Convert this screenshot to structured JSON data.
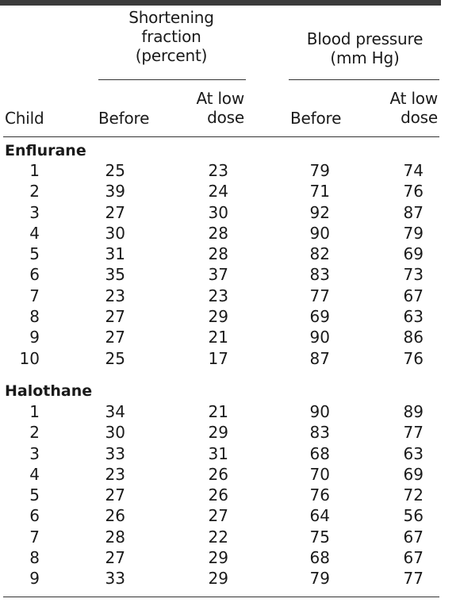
{
  "table": {
    "headers": {
      "group_shortening_line1": "Shortening",
      "group_shortening_line2": "fraction",
      "group_shortening_line3": "(percent)",
      "group_bp_line1": "Blood pressure",
      "group_bp_line2": "(mm Hg)",
      "child": "Child",
      "before_sf": "Before",
      "low_sf_line1": "At low",
      "low_sf_line2": "dose",
      "before_bp": "Before",
      "low_bp_line1": "At low",
      "low_bp_line2": "dose"
    },
    "sections": [
      {
        "name": "Enflurane",
        "rows": [
          [
            "1",
            "25",
            "23",
            "79",
            "74"
          ],
          [
            "2",
            "39",
            "24",
            "71",
            "76"
          ],
          [
            "3",
            "27",
            "30",
            "92",
            "87"
          ],
          [
            "4",
            "30",
            "28",
            "90",
            "79"
          ],
          [
            "5",
            "31",
            "28",
            "82",
            "69"
          ],
          [
            "6",
            "35",
            "37",
            "83",
            "73"
          ],
          [
            "7",
            "23",
            "23",
            "77",
            "67"
          ],
          [
            "8",
            "27",
            "29",
            "69",
            "63"
          ],
          [
            "9",
            "27",
            "21",
            "90",
            "86"
          ],
          [
            "10",
            "25",
            "17",
            "87",
            "76"
          ]
        ]
      },
      {
        "name": "Halothane",
        "rows": [
          [
            "1",
            "34",
            "21",
            "90",
            "89"
          ],
          [
            "2",
            "30",
            "29",
            "83",
            "77"
          ],
          [
            "3",
            "33",
            "31",
            "68",
            "63"
          ],
          [
            "4",
            "23",
            "26",
            "70",
            "69"
          ],
          [
            "5",
            "27",
            "26",
            "76",
            "72"
          ],
          [
            "6",
            "26",
            "27",
            "64",
            "56"
          ],
          [
            "7",
            "28",
            "22",
            "75",
            "67"
          ],
          [
            "8",
            "27",
            "29",
            "68",
            "67"
          ],
          [
            "9",
            "33",
            "29",
            "79",
            "77"
          ]
        ]
      }
    ]
  }
}
